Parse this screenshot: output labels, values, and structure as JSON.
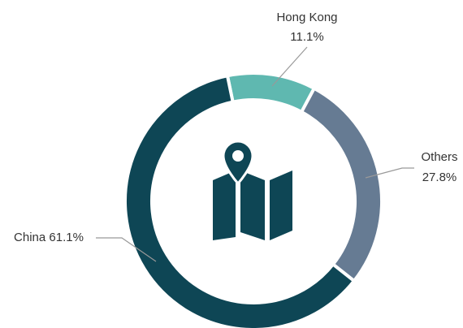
{
  "chart_data": {
    "type": "donut",
    "categories": [
      "Hong Kong",
      "Others",
      "China"
    ],
    "values": [
      11.1,
      27.8,
      61.1
    ],
    "value_labels": [
      "11.1%",
      "27.8%",
      "61.1%"
    ],
    "colors": [
      "#5fb8b0",
      "#667b93",
      "#0e4655"
    ]
  }
}
